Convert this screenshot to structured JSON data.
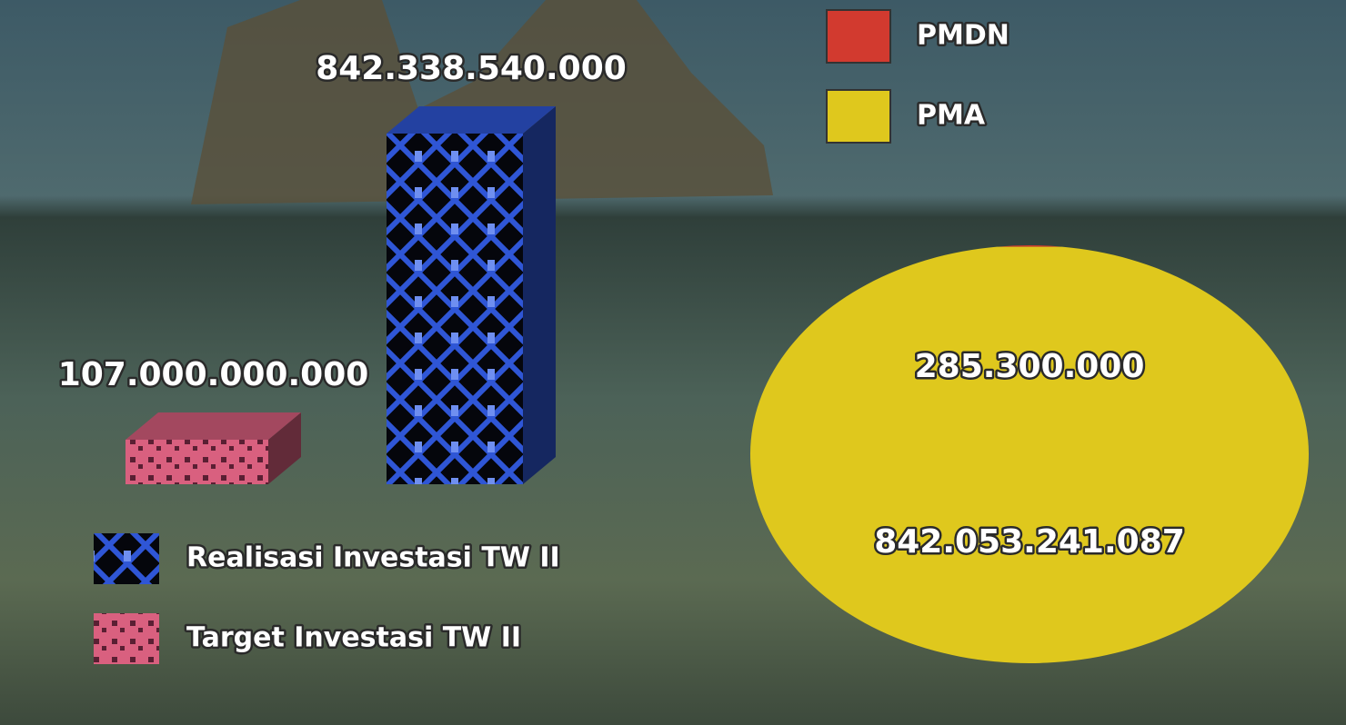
{
  "chart_data": [
    {
      "type": "bar3d",
      "categories": [
        "Realisasi Investasi TW II",
        "Target Investasi TW II"
      ],
      "values": [
        842338540000,
        107000000000
      ],
      "value_labels": [
        "842.338.540.000",
        "107.000.000.000"
      ],
      "colors": [
        "#2f56d6",
        "#d9607f"
      ]
    },
    {
      "type": "pie",
      "categories": [
        "PMDN",
        "PMA"
      ],
      "values": [
        285300000,
        842053241087
      ],
      "value_labels": [
        "285.300.000",
        "842.053.241.087"
      ],
      "colors": [
        "#d23a2f",
        "#dfc81d"
      ]
    }
  ]
}
